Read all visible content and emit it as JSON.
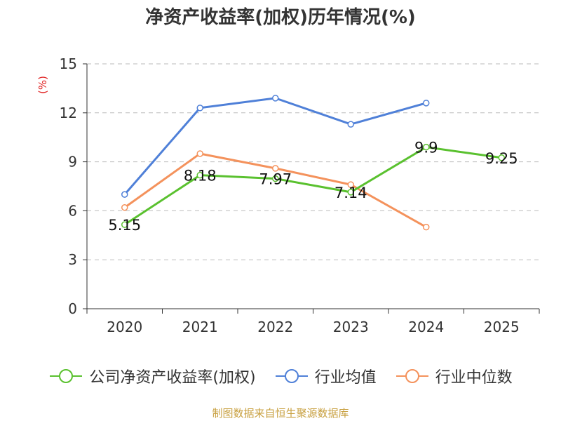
{
  "chart_data": {
    "type": "line",
    "title": "净资产收益率(加权)历年情况(%)",
    "ylabel": "(%)",
    "categories": [
      "2020",
      "2021",
      "2022",
      "2023",
      "2024",
      "2025"
    ],
    "ylim": [
      0,
      15
    ],
    "yticks": [
      "0",
      "3",
      "6",
      "9",
      "12",
      "15"
    ],
    "grid": true,
    "legend_position": "bottom",
    "series": [
      {
        "name": "公司净资产收益率(加权)",
        "color": "#5ac12f",
        "values": [
          5.15,
          8.18,
          7.97,
          7.14,
          9.9,
          9.25
        ],
        "labels": [
          "5.15",
          "8.18",
          "7.97",
          "7.14",
          "9.9",
          "9.25"
        ]
      },
      {
        "name": "行业均值",
        "color": "#4f80d8",
        "values": [
          7.0,
          12.3,
          12.9,
          11.3,
          12.6,
          null
        ]
      },
      {
        "name": "行业中位数",
        "color": "#f4925c",
        "values": [
          6.2,
          9.5,
          8.6,
          7.6,
          5.0,
          null
        ]
      }
    ]
  },
  "source": "制图数据来自恒生聚源数据库"
}
